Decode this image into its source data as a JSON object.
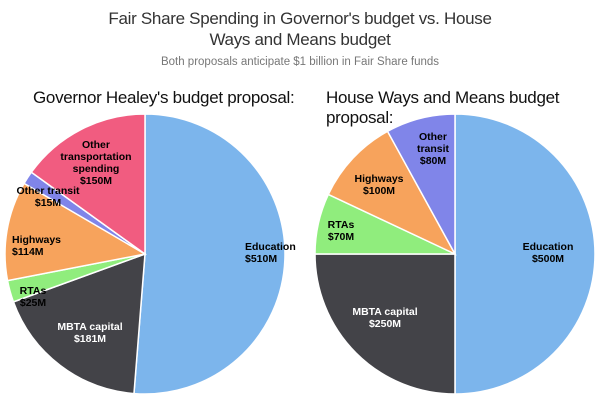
{
  "header": {
    "title_line1": "Fair Share Spending in Governor's budget vs. House",
    "title_line2": "Ways and Means budget",
    "subtitle": "Both proposals anticipate $1 billion in Fair Share funds"
  },
  "chart_data": [
    {
      "type": "pie",
      "title": "Governor Healey's budget proposal:",
      "categories": [
        "Education",
        "MBTA capital",
        "RTAs",
        "Highways",
        "Other transit",
        "Other transportation spending"
      ],
      "values": [
        510,
        181,
        25,
        114,
        15,
        150
      ],
      "labels": [
        "$510M",
        "$181M",
        "$25M",
        "$114M",
        "$15M",
        "$150M"
      ],
      "colors": [
        "#7cb5ec",
        "#434348",
        "#90ed7d",
        "#f7a35c",
        "#8085e9",
        "#f15c80"
      ]
    },
    {
      "type": "pie",
      "title": "House Ways and Means budget proposal:",
      "categories": [
        "Education",
        "MBTA capital",
        "RTAs",
        "Highways",
        "Other transit"
      ],
      "values": [
        500,
        250,
        70,
        100,
        80
      ],
      "labels": [
        "$500M",
        "$250M",
        "$70M",
        "$100M",
        "$80M"
      ],
      "colors": [
        "#7cb5ec",
        "#434348",
        "#90ed7d",
        "#f7a35c",
        "#8085e9"
      ]
    }
  ]
}
